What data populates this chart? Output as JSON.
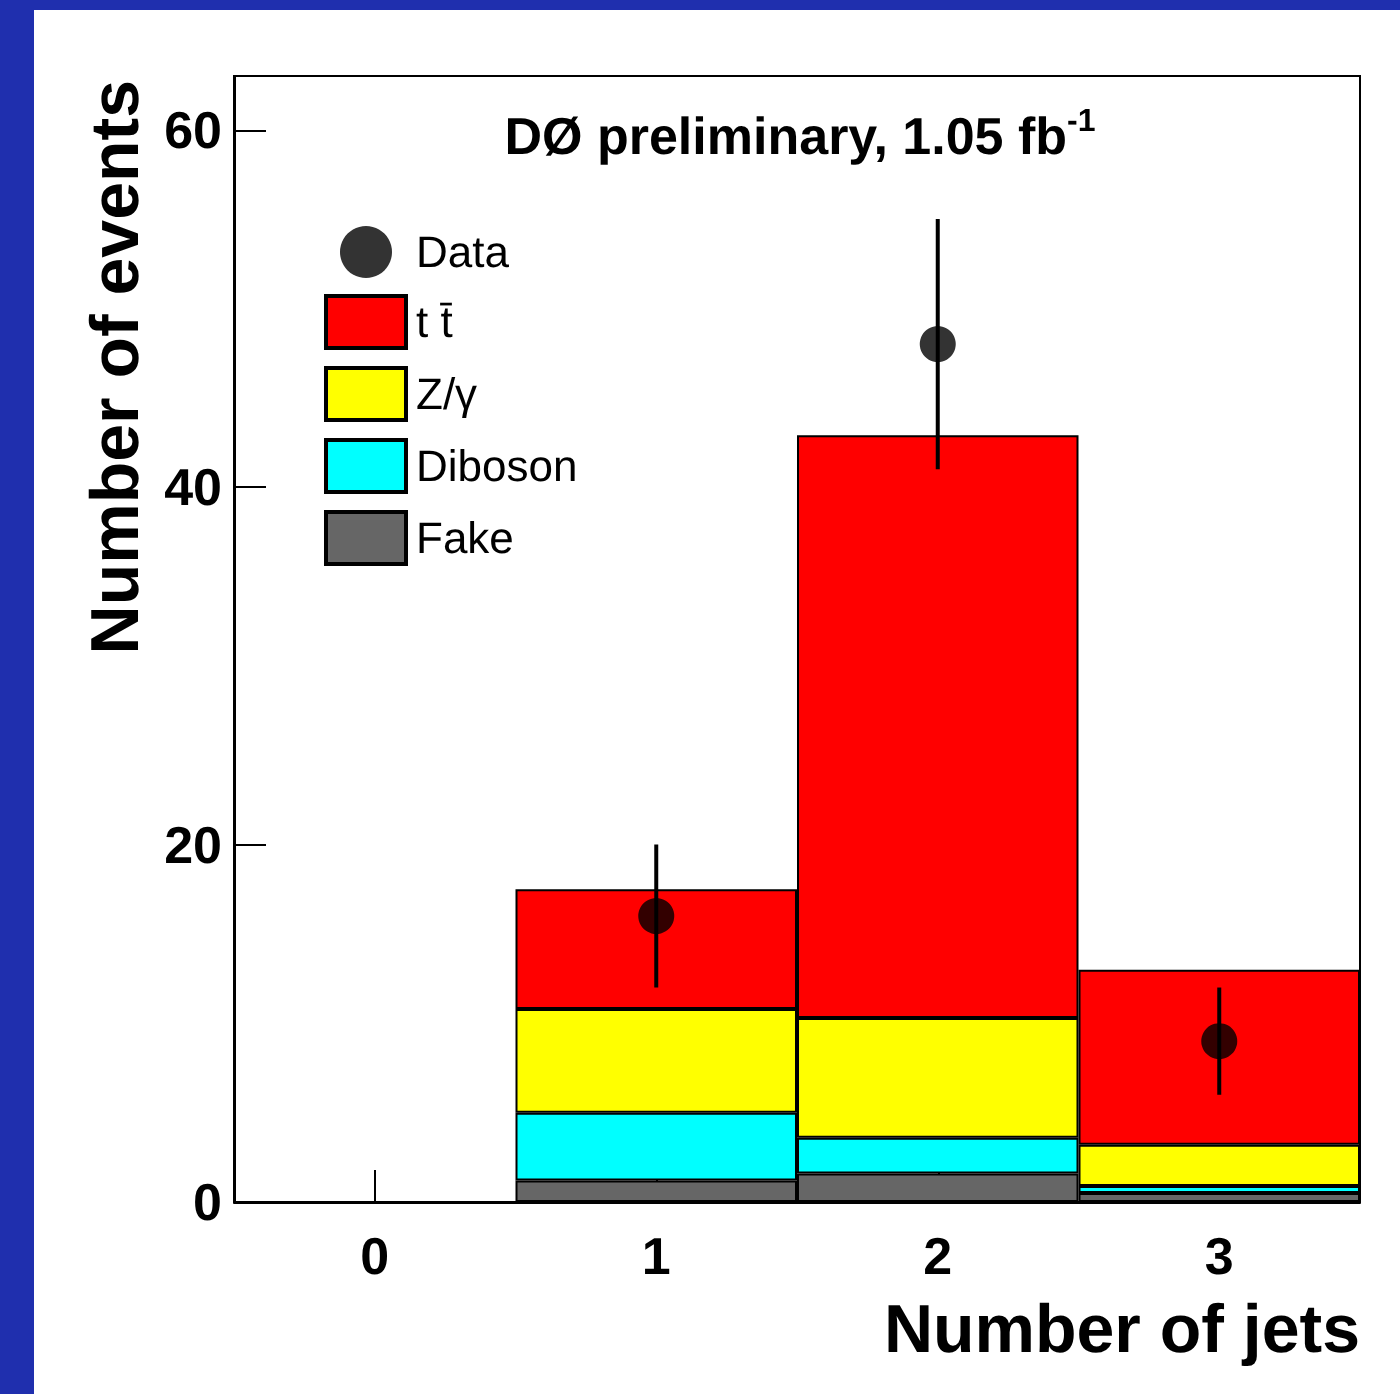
{
  "chart_data": {
    "type": "bar",
    "title": "DØ preliminary, 1.05 fb$^{-1}$",
    "xlabel": "Number of jets",
    "ylabel": "Number of events",
    "categories": [
      "0",
      "1",
      "2",
      "3"
    ],
    "stacked": true,
    "series": [
      {
        "name": "Fake",
        "color": "#666666",
        "values": [
          0,
          1.2,
          1.6,
          0.5
        ]
      },
      {
        "name": "Diboson",
        "color": "#00ffff",
        "values": [
          0,
          3.8,
          2.0,
          0.4
        ]
      },
      {
        "name": "Z/γ",
        "color": "#ffff00",
        "values": [
          0,
          5.8,
          6.7,
          2.3
        ]
      },
      {
        "name": "t t̄",
        "color": "#ff0000",
        "values": [
          0,
          6.7,
          32.6,
          9.8
        ]
      },
      {
        "name": "Data",
        "type": "scatter",
        "color": "#000000",
        "x": [
          "1",
          "2",
          "3"
        ],
        "values": [
          16,
          48,
          9
        ],
        "errors": [
          4,
          7,
          3
        ]
      }
    ],
    "ylim": [
      0,
      63
    ],
    "yticks": [
      0,
      20,
      40,
      60
    ],
    "legend": "top left",
    "marker": "circle"
  }
}
